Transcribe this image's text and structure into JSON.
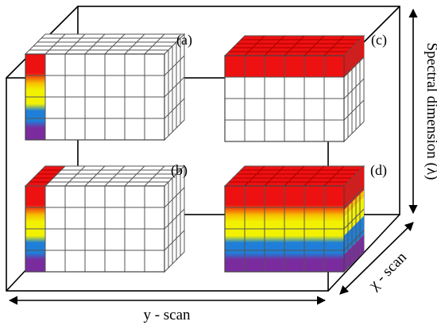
{
  "panels": [
    {
      "id": "a",
      "label": "(a)"
    },
    {
      "id": "b",
      "label": "(b)"
    },
    {
      "id": "c",
      "label": "(c)"
    },
    {
      "id": "d",
      "label": "(d)"
    }
  ],
  "axes": {
    "spectral": "Spectral dimension (λ)",
    "y_scan": "y - scan",
    "x_scan": "χ - scan"
  },
  "colors": {
    "red": "#ee1111",
    "yellow": "#f2f200",
    "blue": "#1f7fd8",
    "purple": "#7a2c9e",
    "outline": "#000000",
    "grid": "#555555"
  }
}
